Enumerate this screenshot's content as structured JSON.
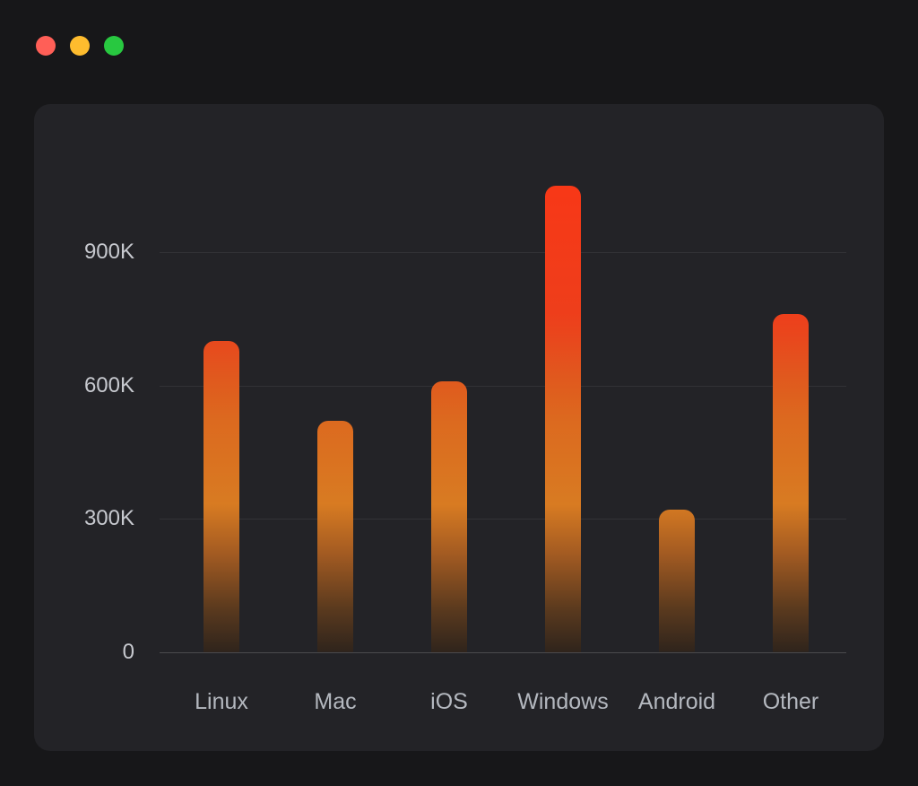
{
  "window": {
    "controls": [
      {
        "id": "close",
        "color": "#ff5f57"
      },
      {
        "id": "minimize",
        "color": "#febc2e"
      },
      {
        "id": "maximize",
        "color": "#28c840"
      }
    ]
  },
  "theme": {
    "page_bg": "#171719",
    "panel_bg": "#232327",
    "grid_color": "rgba(255,255,255,0.07)",
    "axis_color": "rgba(255,255,255,0.18)",
    "tick_color": "#c7c9cf",
    "label_color": "#b4b8bf"
  },
  "chart_data": {
    "type": "bar",
    "title": "",
    "xlabel": "",
    "ylabel": "",
    "categories": [
      "Linux",
      "Mac",
      "iOS",
      "Windows",
      "Android",
      "Other"
    ],
    "values": [
      700000,
      520000,
      610000,
      1050000,
      320000,
      760000
    ],
    "y_ticks": [
      {
        "value": 0,
        "label": "0"
      },
      {
        "value": 300000,
        "label": "300K"
      },
      {
        "value": 600000,
        "label": "600K"
      },
      {
        "value": 900000,
        "label": "900K"
      }
    ],
    "ylim": [
      0,
      1250000
    ],
    "grid": "horizontal-only",
    "legend": false,
    "bar_gradient_stops": [
      [
        0.0,
        "#2f241c"
      ],
      [
        0.08,
        "#5b3a1e"
      ],
      [
        0.18,
        "#a35b22"
      ],
      [
        0.27,
        "#d87b22"
      ],
      [
        0.42,
        "#dc6a1f"
      ],
      [
        0.5,
        "#e0591e"
      ],
      [
        0.57,
        "#e8481d"
      ],
      [
        0.62,
        "#ee3e1b"
      ],
      [
        0.84,
        "#f73817"
      ],
      [
        1.0,
        "#ff3a15"
      ]
    ]
  }
}
